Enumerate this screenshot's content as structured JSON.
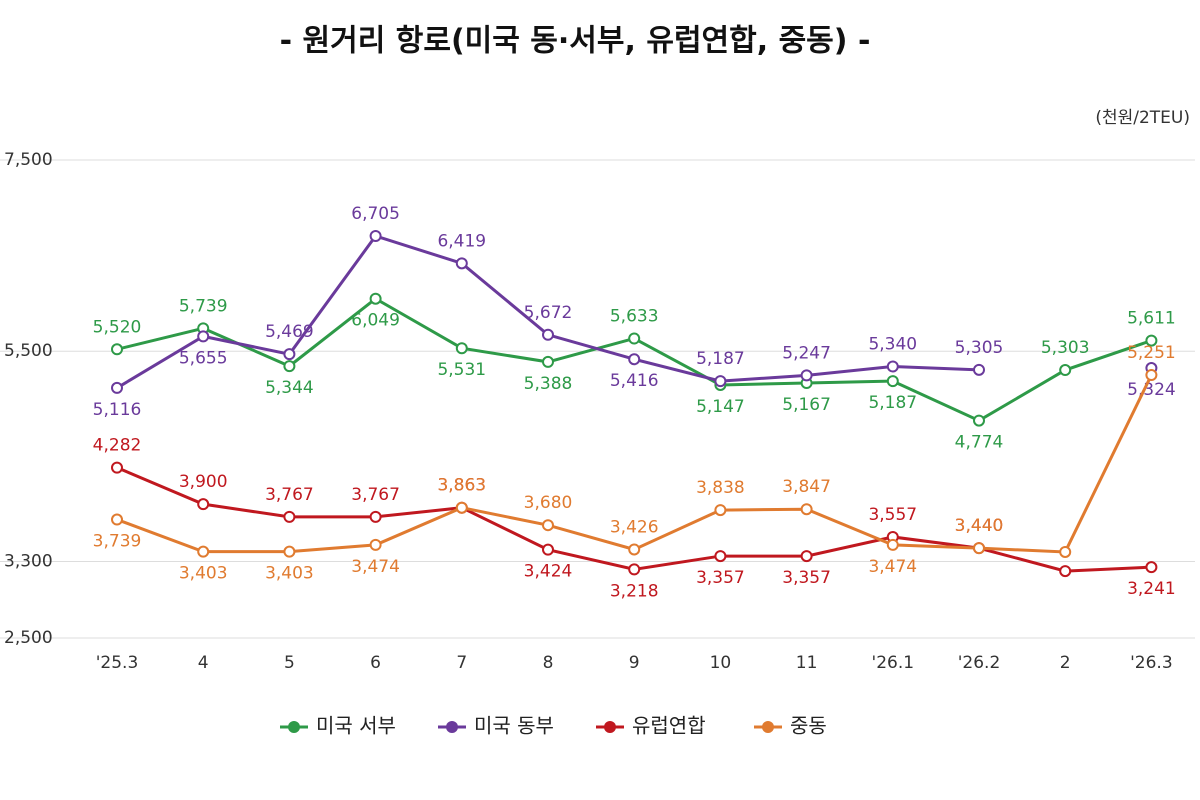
{
  "chart_data": {
    "type": "line",
    "title": "- 원거리 항로(미국 동·서부, 유럽연합, 중동) -",
    "unit_label": "(천원/2TEU)",
    "categories": [
      "'25.3",
      "4",
      "5",
      "6",
      "7",
      "8",
      "9",
      "10",
      "11",
      "'26.1",
      "'26.2",
      "2",
      "'26.3"
    ],
    "ylim": [
      2500,
      7500
    ],
    "yticks": [
      {
        "value": 2500,
        "label": "2,500"
      },
      {
        "value": 3300,
        "label": "3,300"
      },
      {
        "value": 5500,
        "label": "5,500"
      },
      {
        "value": 7500,
        "label": "7,500"
      }
    ],
    "grid": true,
    "legend": "bottom",
    "series": [
      {
        "name": "미국 서부",
        "color": "#2e9a48",
        "values": [
          5520,
          5739,
          5344,
          6049,
          5531,
          5388,
          5633,
          5147,
          5167,
          5187,
          4774,
          5303,
          5611
        ],
        "value_labels": [
          "5,520",
          "5,739",
          "5,344",
          "6,049",
          "5,531",
          "5,388",
          "5,633",
          "5,147",
          "5,167",
          "5,187",
          "4,774",
          "5,303",
          "5,611"
        ]
      },
      {
        "name": "미국 동부",
        "color": "#6a3a9b",
        "values": [
          5116,
          5655,
          5469,
          6705,
          6419,
          5672,
          5416,
          5187,
          5247,
          5340,
          5305,
          null,
          5324
        ],
        "value_labels": [
          "5,116",
          "5,655",
          "5,469",
          "6,705",
          "6,419",
          "5,672",
          "5,416",
          "5,187",
          "5,247",
          "5,340",
          "5,305",
          null,
          "5,324"
        ]
      },
      {
        "name": "유럽연합",
        "color": "#c0181f",
        "values": [
          4282,
          3900,
          3767,
          3767,
          3863,
          3424,
          3218,
          3357,
          3357,
          3557,
          3440,
          3200,
          3241
        ],
        "value_labels": [
          "4,282",
          "3,900",
          "3,767",
          "3,767",
          "3,863",
          "3,424",
          "3,218",
          "3,357",
          "3,357",
          "3,557",
          "3,440",
          null,
          "3,241"
        ]
      },
      {
        "name": "중동",
        "color": "#e07b30",
        "values": [
          3739,
          3403,
          3403,
          3474,
          3863,
          3680,
          3426,
          3838,
          3847,
          3474,
          3440,
          3400,
          5251
        ],
        "value_labels": [
          "3,739",
          "3,403",
          "3,403",
          "3,474",
          "3,863",
          "3,680",
          "3,426",
          "3,838",
          "3,847",
          "3,474",
          "3,440",
          null,
          "5,251"
        ]
      }
    ]
  }
}
